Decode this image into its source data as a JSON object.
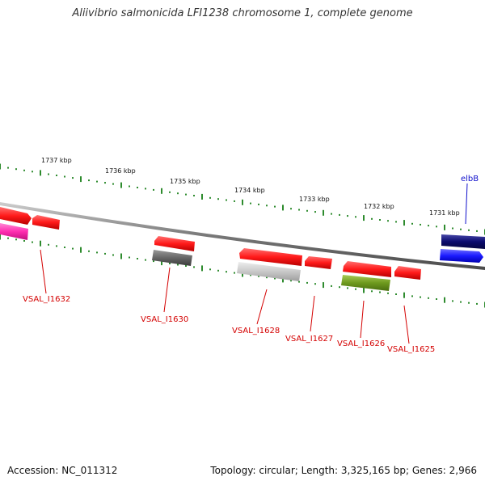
{
  "title": "Aliivibrio salmonicida LFI1238 chromosome 1, complete genome",
  "footer": {
    "accession": "Accession: NC_011312",
    "summary": "Topology: circular; Length: 3,325,165 bp; Genes: 2,966"
  },
  "ticks": [
    {
      "label": "1737 kbp"
    },
    {
      "label": "1736 kbp"
    },
    {
      "label": "1735 kbp"
    },
    {
      "label": "1734 kbp"
    },
    {
      "label": "1733 kbp"
    },
    {
      "label": "1732 kbp"
    },
    {
      "label": "1731 kbp"
    }
  ],
  "gene_labels": [
    {
      "name": "VSAL_I1632",
      "color": "#d40000"
    },
    {
      "name": "VSAL_I1630",
      "color": "#d40000"
    },
    {
      "name": "VSAL_I1628",
      "color": "#d40000"
    },
    {
      "name": "VSAL_I1627",
      "color": "#d40000"
    },
    {
      "name": "VSAL_I1626",
      "color": "#d40000"
    },
    {
      "name": "VSAL_I1625",
      "color": "#d40000"
    },
    {
      "name": "elbB",
      "color": "#1010cc"
    }
  ],
  "colors": {
    "red": "#ff1a1a",
    "magenta": "#ff2db0",
    "dark_gray": "#666666",
    "light_gray": "#c8c8c8",
    "olive": "#6e9a1e",
    "navy": "#0a0a6e",
    "blue": "#1a1aff",
    "backbone": "#888888",
    "tick": "#2e8b2e"
  }
}
